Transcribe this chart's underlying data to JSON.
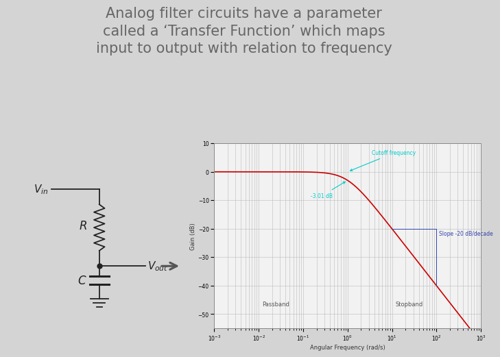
{
  "background_color": "#d4d4d4",
  "title_text": "Analog filter circuits have a parameter\ncalled a ‘Transfer Function’ which maps\ninput to output with relation to frequency",
  "title_fontsize": 15,
  "title_color": "#666666",
  "plot_bg": "#f2f2f2",
  "bode_xlim": [
    0.001,
    1000
  ],
  "bode_ylim": [
    -55,
    10
  ],
  "bode_yticks": [
    10,
    0,
    -10,
    -20,
    -30,
    -40,
    -50
  ],
  "bode_ylabel": "Gain (dB)",
  "bode_xlabel": "Angular Frequency (rad/s)",
  "cutoff_freq": 1.0,
  "passband_label": "Passband",
  "stopband_label": "Stopband",
  "cutoff_label": "Cutoff frequency",
  "slope_label": "Slope -20 dB/decade",
  "minus3db_label": "-3.01 dB",
  "line_color": "#cc0000",
  "annotation_color": "#00cccc",
  "slope_line_color": "#3344aa",
  "circuit_color": "#222222",
  "arrow_color": "#555555"
}
